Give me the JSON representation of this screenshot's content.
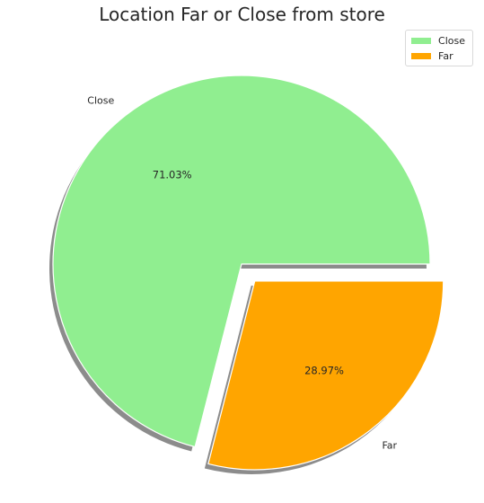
{
  "chart_data": {
    "type": "pie",
    "title": "Location Far or Close from store",
    "categories": [
      "Close",
      "Far"
    ],
    "values": [
      71.03,
      28.97
    ],
    "labels": [
      "71.03%",
      "28.97%"
    ],
    "colors": [
      "#90ee90",
      "#ffa500"
    ],
    "explode": [
      false,
      true
    ],
    "shadow": true,
    "start_angle_deg": 0,
    "direction": "counterclockwise",
    "legend": {
      "placement": "top-right",
      "entries": [
        "Close",
        "Far"
      ]
    }
  }
}
